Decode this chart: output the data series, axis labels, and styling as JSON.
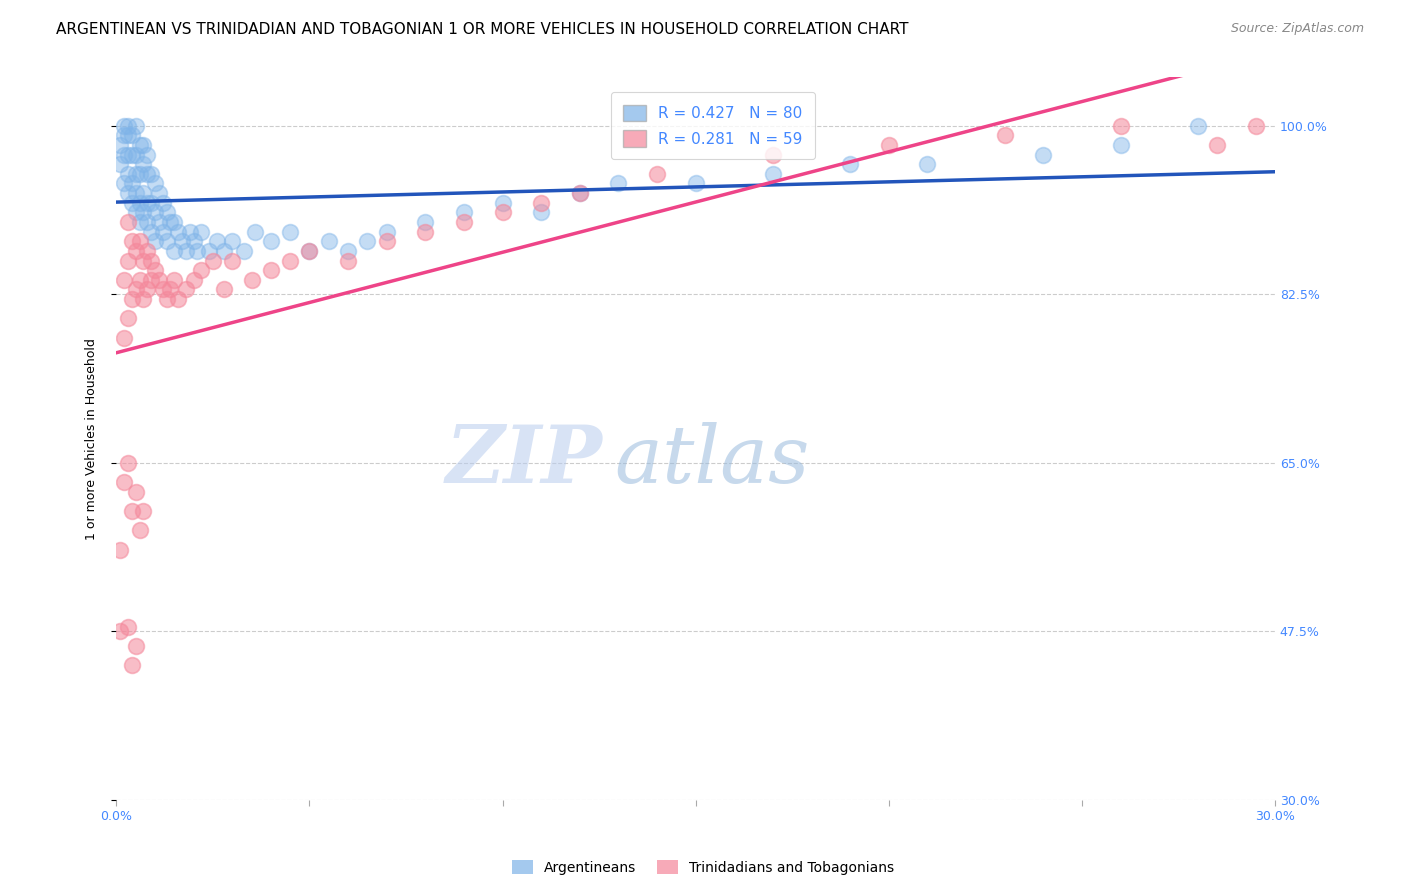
{
  "title": "ARGENTINEAN VS TRINIDADIAN AND TOBAGONIAN 1 OR MORE VEHICLES IN HOUSEHOLD CORRELATION CHART",
  "source": "Source: ZipAtlas.com",
  "ylabel": "1 or more Vehicles in Household",
  "xlim": [
    0.0,
    0.3
  ],
  "ylim": [
    0.3,
    1.05
  ],
  "xticks": [
    0.0,
    0.05,
    0.1,
    0.15,
    0.2,
    0.25,
    0.3
  ],
  "xticklabels": [
    "0.0%",
    "",
    "",
    "",
    "",
    "",
    "30.0%"
  ],
  "yticks": [
    0.3,
    0.475,
    0.65,
    0.825,
    1.0
  ],
  "yticklabels": [
    "30.0%",
    "47.5%",
    "65.0%",
    "82.5%",
    "100.0%"
  ],
  "watermark_zip": "ZIP",
  "watermark_atlas": "atlas",
  "legend_r1": "R = 0.427",
  "legend_n1": "N = 80",
  "legend_r2": "R = 0.281",
  "legend_n2": "N = 59",
  "blue_color": "#7EB3E8",
  "pink_color": "#F4879A",
  "trendline_blue": "#2255BB",
  "trendline_pink": "#EE4488",
  "blue_scatter_x": [
    0.001,
    0.001,
    0.002,
    0.002,
    0.002,
    0.002,
    0.003,
    0.003,
    0.003,
    0.003,
    0.003,
    0.004,
    0.004,
    0.004,
    0.004,
    0.005,
    0.005,
    0.005,
    0.005,
    0.005,
    0.006,
    0.006,
    0.006,
    0.006,
    0.007,
    0.007,
    0.007,
    0.007,
    0.008,
    0.008,
    0.008,
    0.008,
    0.009,
    0.009,
    0.009,
    0.01,
    0.01,
    0.01,
    0.011,
    0.011,
    0.012,
    0.012,
    0.013,
    0.013,
    0.014,
    0.015,
    0.015,
    0.016,
    0.017,
    0.018,
    0.019,
    0.02,
    0.021,
    0.022,
    0.024,
    0.026,
    0.028,
    0.03,
    0.033,
    0.036,
    0.04,
    0.045,
    0.05,
    0.055,
    0.06,
    0.065,
    0.07,
    0.08,
    0.09,
    0.1,
    0.11,
    0.12,
    0.13,
    0.15,
    0.17,
    0.19,
    0.21,
    0.24,
    0.26,
    0.28
  ],
  "blue_scatter_y": [
    0.96,
    0.98,
    0.94,
    0.97,
    0.99,
    1.0,
    0.93,
    0.95,
    0.97,
    0.99,
    1.0,
    0.92,
    0.94,
    0.97,
    0.99,
    0.91,
    0.93,
    0.95,
    0.97,
    1.0,
    0.9,
    0.92,
    0.95,
    0.98,
    0.91,
    0.93,
    0.96,
    0.98,
    0.9,
    0.92,
    0.95,
    0.97,
    0.89,
    0.92,
    0.95,
    0.88,
    0.91,
    0.94,
    0.9,
    0.93,
    0.89,
    0.92,
    0.88,
    0.91,
    0.9,
    0.87,
    0.9,
    0.89,
    0.88,
    0.87,
    0.89,
    0.88,
    0.87,
    0.89,
    0.87,
    0.88,
    0.87,
    0.88,
    0.87,
    0.89,
    0.88,
    0.89,
    0.87,
    0.88,
    0.87,
    0.88,
    0.89,
    0.9,
    0.91,
    0.92,
    0.91,
    0.93,
    0.94,
    0.94,
    0.95,
    0.96,
    0.96,
    0.97,
    0.98,
    1.0
  ],
  "pink_scatter_x": [
    0.001,
    0.001,
    0.002,
    0.002,
    0.003,
    0.003,
    0.003,
    0.004,
    0.004,
    0.005,
    0.005,
    0.006,
    0.006,
    0.007,
    0.007,
    0.008,
    0.008,
    0.009,
    0.009,
    0.01,
    0.011,
    0.012,
    0.013,
    0.014,
    0.015,
    0.016,
    0.018,
    0.02,
    0.022,
    0.025,
    0.028,
    0.03,
    0.035,
    0.04,
    0.045,
    0.05,
    0.06,
    0.07,
    0.08,
    0.09,
    0.1,
    0.11,
    0.12,
    0.14,
    0.17,
    0.2,
    0.23,
    0.26,
    0.285,
    0.295,
    0.002,
    0.003,
    0.004,
    0.005,
    0.006,
    0.007,
    0.003,
    0.004,
    0.005
  ],
  "pink_scatter_y": [
    0.475,
    0.56,
    0.78,
    0.84,
    0.8,
    0.86,
    0.9,
    0.82,
    0.88,
    0.83,
    0.87,
    0.84,
    0.88,
    0.82,
    0.86,
    0.83,
    0.87,
    0.84,
    0.86,
    0.85,
    0.84,
    0.83,
    0.82,
    0.83,
    0.84,
    0.82,
    0.83,
    0.84,
    0.85,
    0.86,
    0.83,
    0.86,
    0.84,
    0.85,
    0.86,
    0.87,
    0.86,
    0.88,
    0.89,
    0.9,
    0.91,
    0.92,
    0.93,
    0.95,
    0.97,
    0.98,
    0.99,
    1.0,
    0.98,
    1.0,
    0.63,
    0.65,
    0.6,
    0.62,
    0.58,
    0.6,
    0.48,
    0.44,
    0.46
  ],
  "background_color": "#ffffff",
  "grid_color": "#cccccc",
  "axis_label_color": "#4488FF",
  "title_fontsize": 11,
  "ylabel_fontsize": 9,
  "tick_fontsize": 9,
  "source_fontsize": 9
}
